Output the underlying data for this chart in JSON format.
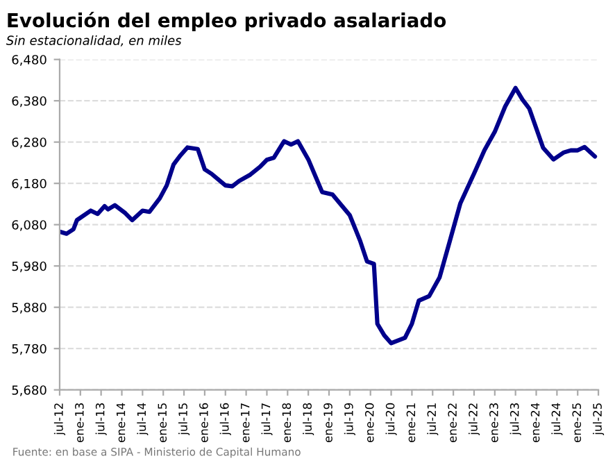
{
  "chart_data": {
    "type": "line",
    "title": "Evolución del empleo privado asalariado",
    "subtitle": "Sin estacionalidad, en miles",
    "annotations": [
      "Fuente: en base a SIPA - Ministerio de Capital Humano"
    ],
    "x": [
      "2012-07",
      "2012-09",
      "2012-11",
      "2012-12",
      "2013-04",
      "2013-06",
      "2013-08",
      "2013-09",
      "2013-11",
      "2014-02",
      "2014-04",
      "2014-07",
      "2014-09",
      "2014-12",
      "2015-02",
      "2015-04",
      "2015-06",
      "2015-08",
      "2015-11",
      "2016-01",
      "2016-03",
      "2016-07",
      "2016-09",
      "2016-11",
      "2017-02",
      "2017-05",
      "2017-07",
      "2017-09",
      "2017-12",
      "2018-02",
      "2018-04",
      "2018-07",
      "2018-11",
      "2019-02",
      "2019-07",
      "2019-10",
      "2019-12",
      "2020-02",
      "2020-03",
      "2020-05",
      "2020-07",
      "2020-11",
      "2021-01",
      "2021-03",
      "2021-06",
      "2021-09",
      "2021-12",
      "2022-03",
      "2022-07",
      "2022-10",
      "2023-01",
      "2023-04",
      "2023-07",
      "2023-09",
      "2023-11",
      "2024-03",
      "2024-06",
      "2024-09",
      "2024-11",
      "2025-01",
      "2025-03",
      "2025-06"
    ],
    "series": [
      {
        "color": "#00008b",
        "values": [
          6063,
          6058,
          6069,
          6091,
          6114,
          6106,
          6125,
          6117,
          6127,
          6108,
          6091,
          6114,
          6111,
          6144,
          6175,
          6226,
          6248,
          6267,
          6263,
          6214,
          6203,
          6175,
          6173,
          6186,
          6200,
          6220,
          6237,
          6242,
          6282,
          6274,
          6282,
          6238,
          6159,
          6153,
          6103,
          6041,
          5991,
          5985,
          5840,
          5812,
          5793,
          5806,
          5840,
          5896,
          5907,
          5952,
          6041,
          6131,
          6204,
          6260,
          6305,
          6366,
          6411,
          6383,
          6361,
          6266,
          6238,
          6255,
          6260,
          6260,
          6268,
          6245
        ]
      }
    ],
    "xlim": [
      "2012-07",
      "2025-07"
    ],
    "xticks": [
      {
        "value": "2012-07",
        "label": "jul-12"
      },
      {
        "value": "2013-01",
        "label": "ene-13"
      },
      {
        "value": "2013-07",
        "label": "jul-13"
      },
      {
        "value": "2014-01",
        "label": "ene-14"
      },
      {
        "value": "2014-07",
        "label": "jul-14"
      },
      {
        "value": "2015-01",
        "label": "ene-15"
      },
      {
        "value": "2015-07",
        "label": "jul-15"
      },
      {
        "value": "2016-01",
        "label": "ene-16"
      },
      {
        "value": "2016-07",
        "label": "jul-16"
      },
      {
        "value": "2017-01",
        "label": "ene-17"
      },
      {
        "value": "2017-07",
        "label": "jul-17"
      },
      {
        "value": "2018-01",
        "label": "ene-18"
      },
      {
        "value": "2018-07",
        "label": "jul-18"
      },
      {
        "value": "2019-01",
        "label": "ene-19"
      },
      {
        "value": "2019-07",
        "label": "jul-19"
      },
      {
        "value": "2020-01",
        "label": "ene-20"
      },
      {
        "value": "2020-07",
        "label": "jul-20"
      },
      {
        "value": "2021-01",
        "label": "ene-21"
      },
      {
        "value": "2021-07",
        "label": "jul-21"
      },
      {
        "value": "2022-01",
        "label": "ene-22"
      },
      {
        "value": "2022-07",
        "label": "jul-22"
      },
      {
        "value": "2023-01",
        "label": "ene-23"
      },
      {
        "value": "2023-07",
        "label": "jul-23"
      },
      {
        "value": "2024-01",
        "label": "ene-24"
      },
      {
        "value": "2024-07",
        "label": "jul-24"
      },
      {
        "value": "2025-01",
        "label": "ene-25"
      },
      {
        "value": "2025-07",
        "label": "jul-25"
      }
    ],
    "ylim": [
      5680,
      6480
    ],
    "yticks": [
      {
        "value": 5680,
        "label": "5,680"
      },
      {
        "value": 5780,
        "label": "5,780"
      },
      {
        "value": 5880,
        "label": "5,880"
      },
      {
        "value": 5980,
        "label": "5,980"
      },
      {
        "value": 6080,
        "label": "6,080"
      },
      {
        "value": 6180,
        "label": "6,180"
      },
      {
        "value": 6280,
        "label": "6,280"
      },
      {
        "value": 6380,
        "label": "6,380"
      },
      {
        "value": 6480,
        "label": "6,480"
      }
    ],
    "grid": "y",
    "legend": false,
    "marker": "none",
    "line_style": "solid"
  }
}
